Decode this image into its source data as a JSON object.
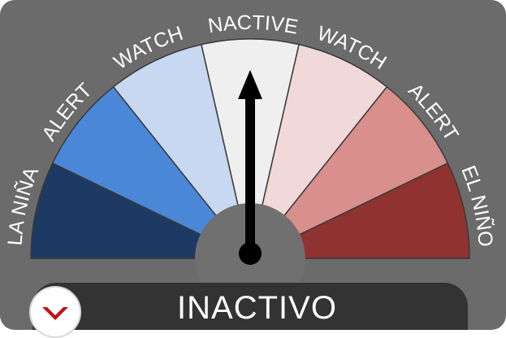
{
  "gauge": {
    "segments": [
      {
        "label": "LA NIÑA",
        "color": "#1c3a63"
      },
      {
        "label": "ALERT",
        "color": "#4b87d7"
      },
      {
        "label": "WATCH",
        "color": "#c7d8f0"
      },
      {
        "label": "INACTIVE",
        "color": "#efefef"
      },
      {
        "label": "WATCH",
        "color": "#f1d9d9"
      },
      {
        "label": "ALERT",
        "color": "#d98f8c"
      },
      {
        "label": "EL NIÑO",
        "color": "#8f3230"
      }
    ],
    "pointer_label": "INACTIVE",
    "background_color": "#6b6b6b",
    "hub_color": "#707070",
    "needle_color": "#000000"
  },
  "status": {
    "text": "INACTIVO",
    "button_icon": "chevron-down-icon",
    "accent_color": "#c0121a"
  }
}
